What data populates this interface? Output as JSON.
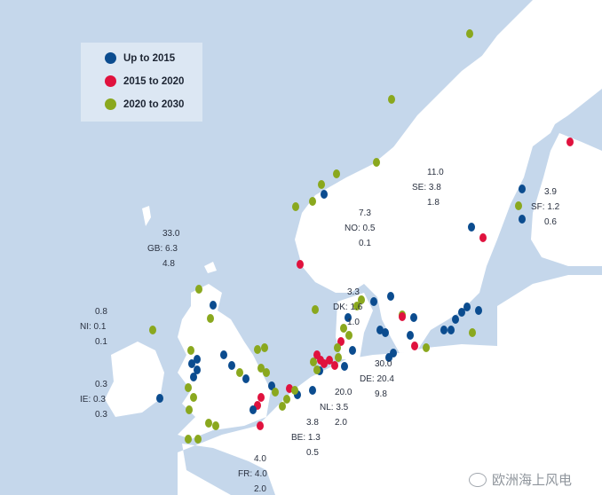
{
  "legend": {
    "items": [
      {
        "label": "Up to 2015",
        "color": "#0b4c8f"
      },
      {
        "label": "2015 to 2020",
        "color": "#e0123e"
      },
      {
        "label": "2020 to 2030",
        "color": "#8aa81e"
      }
    ]
  },
  "countries": [
    {
      "code": "SE",
      "top": "11.0",
      "mid": "SE: 3.8",
      "bottom": "1.8"
    },
    {
      "code": "SF",
      "top": "3.9",
      "mid": "SF: 1.2",
      "bottom": "0.6"
    },
    {
      "code": "NO",
      "top": "7.3",
      "mid": "NO: 0.5",
      "bottom": "0.1"
    },
    {
      "code": "GB",
      "top": "33.0",
      "mid": "GB: 6.3",
      "bottom": "4.8"
    },
    {
      "code": "DK",
      "top": "3.3",
      "mid": "DK: 1.6",
      "bottom": "1.0"
    },
    {
      "code": "NI",
      "top": "0.8",
      "mid": "NI: 0.1",
      "bottom": "0.1"
    },
    {
      "code": "IE",
      "top": "0.3",
      "mid": "IE: 0.3",
      "bottom": "0.3"
    },
    {
      "code": "DE",
      "top": "30.0",
      "mid": "DE: 20.4",
      "bottom": "9.8"
    },
    {
      "code": "NL",
      "top": "20.0",
      "mid": "NL: 3.5",
      "bottom": "2.0"
    },
    {
      "code": "BE",
      "top": "3.8",
      "mid": "BE: 1.3",
      "bottom": "0.5"
    },
    {
      "code": "FR",
      "top": "4.0",
      "mid": "FR: 4.0",
      "bottom": "2.0"
    }
  ],
  "watermark": "欧洲海上风电",
  "colors": {
    "sea": "#c5d7eb",
    "land": "#ffffff"
  }
}
